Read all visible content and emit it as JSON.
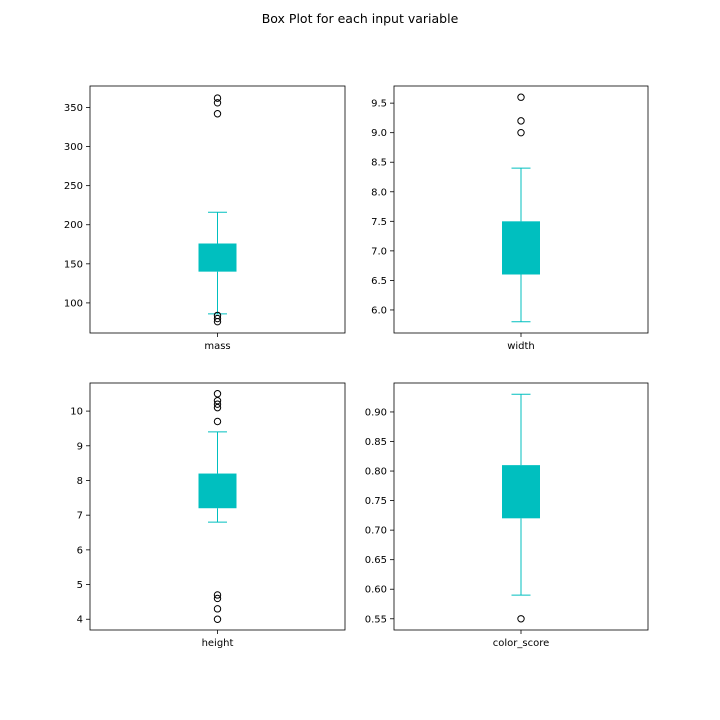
{
  "title": "Box Plot for each input variable",
  "colors": {
    "box": "#00bfbf",
    "axis": "#000000"
  },
  "chart_data": [
    {
      "type": "box",
      "xlabel": "mass",
      "ylim": [
        61.5,
        377.5
      ],
      "yticks": [
        100,
        150,
        200,
        250,
        300,
        350
      ],
      "tick_labels": [
        "100",
        "150",
        "200",
        "250",
        "300",
        "350"
      ],
      "stats": {
        "whislo": 86,
        "q1": 140,
        "q3": 176,
        "whishi": 216
      },
      "fliers": [
        76,
        80,
        84,
        342,
        356,
        362
      ]
    },
    {
      "type": "box",
      "xlabel": "width",
      "ylim": [
        5.61,
        9.79
      ],
      "yticks": [
        6.0,
        6.5,
        7.0,
        7.5,
        8.0,
        8.5,
        9.0,
        9.5
      ],
      "tick_labels": [
        "6.0",
        "6.5",
        "7.0",
        "7.5",
        "8.0",
        "8.5",
        "9.0",
        "9.5"
      ],
      "stats": {
        "whislo": 5.8,
        "q1": 6.6,
        "q3": 7.5,
        "whishi": 8.4
      },
      "fliers": [
        9.0,
        9.2,
        9.6
      ]
    },
    {
      "type": "box",
      "xlabel": "height",
      "ylim": [
        3.69,
        10.81
      ],
      "yticks": [
        4,
        5,
        6,
        7,
        8,
        9,
        10
      ],
      "tick_labels": [
        "4",
        "5",
        "6",
        "7",
        "8",
        "9",
        "10"
      ],
      "stats": {
        "whislo": 6.8,
        "q1": 7.2,
        "q3": 8.2,
        "whishi": 9.4
      },
      "fliers": [
        4.0,
        4.3,
        4.6,
        4.7,
        9.7,
        10.1,
        10.2,
        10.3,
        10.5
      ]
    },
    {
      "type": "box",
      "xlabel": "color_score",
      "ylim": [
        0.531,
        0.949
      ],
      "yticks": [
        0.55,
        0.6,
        0.65,
        0.7,
        0.75,
        0.8,
        0.85,
        0.9
      ],
      "tick_labels": [
        "0.55",
        "0.60",
        "0.65",
        "0.70",
        "0.75",
        "0.80",
        "0.85",
        "0.90"
      ],
      "stats": {
        "whislo": 0.59,
        "q1": 0.72,
        "q3": 0.81,
        "whishi": 0.93
      },
      "fliers": [
        0.55
      ]
    }
  ]
}
